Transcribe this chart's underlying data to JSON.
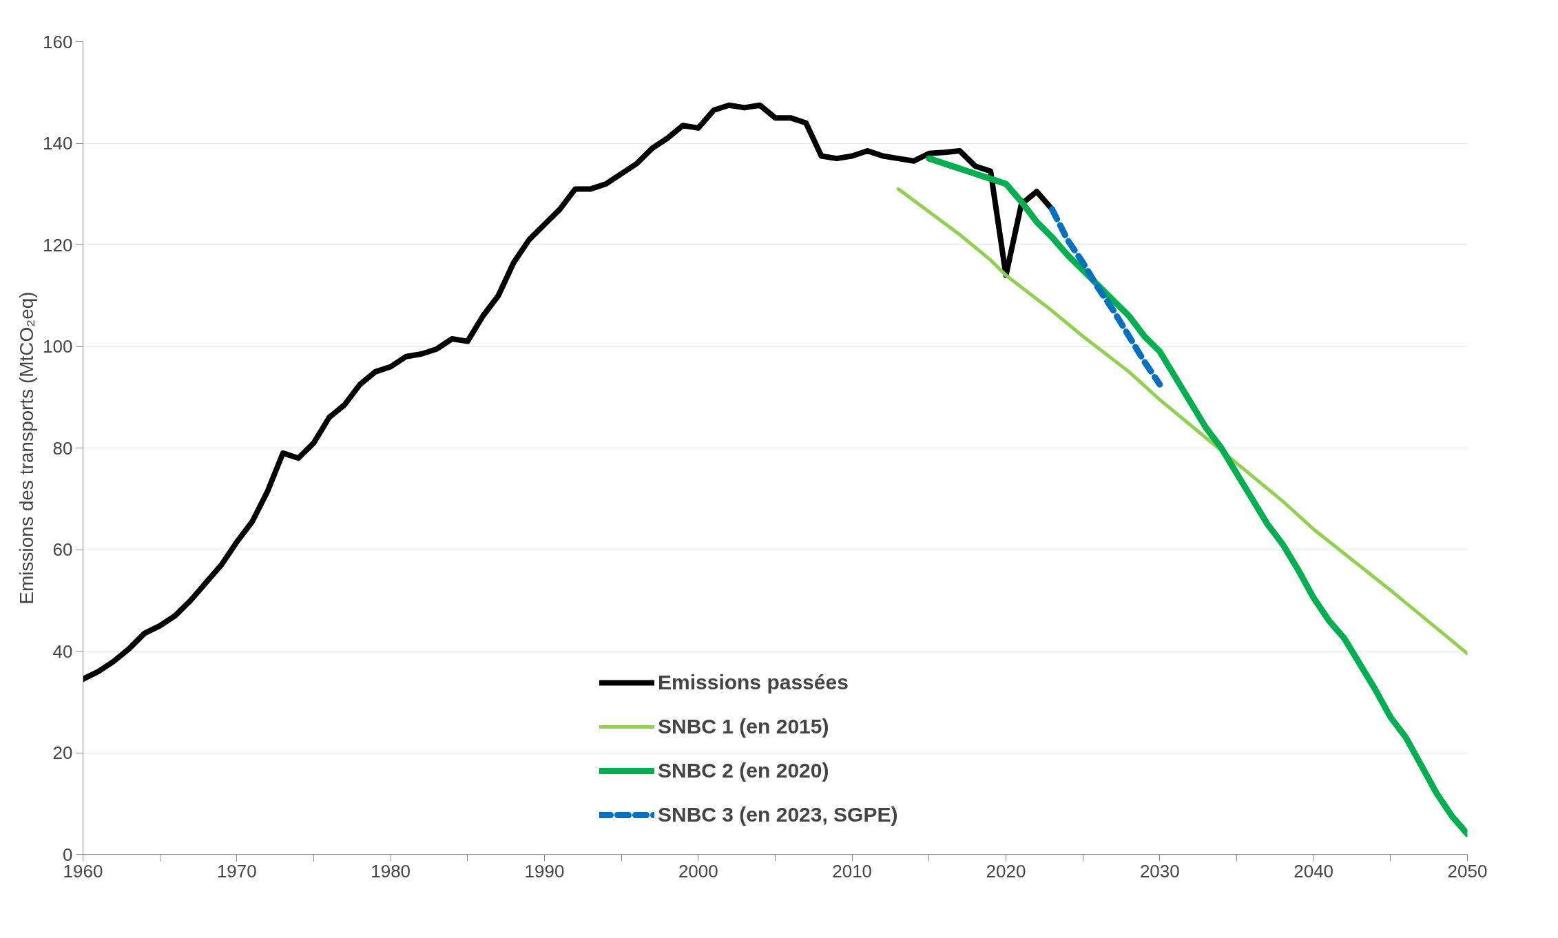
{
  "chart_data": {
    "type": "line",
    "ylabel": "Emissions des transports (MtCO₂eq)",
    "xlim": [
      1960,
      2050
    ],
    "ylim": [
      0,
      160
    ],
    "xticks": [
      1960,
      {
        "value": 1965,
        "label": null
      },
      1970,
      {
        "value": 1975,
        "label": null
      },
      1980,
      {
        "value": 1985,
        "label": null
      },
      1990,
      {
        "value": 1995,
        "label": null
      },
      2000,
      {
        "value": 2005,
        "label": null
      },
      2010,
      {
        "value": 2015,
        "label": null
      },
      2020,
      {
        "value": 2025,
        "label": null
      },
      2030,
      {
        "value": 2035,
        "label": null
      },
      2040,
      {
        "value": 2045,
        "label": null
      },
      2050
    ],
    "yticks": [
      0,
      20,
      40,
      60,
      80,
      100,
      120,
      140,
      160
    ],
    "grid": "y",
    "legend": "bottom",
    "marker": "none",
    "series": [
      {
        "name": "Emissions passées",
        "color": "#000000",
        "x": [
          1960,
          1961,
          1962,
          1963,
          1964,
          1965,
          1966,
          1967,
          1968,
          1969,
          1970,
          1971,
          1972,
          1973,
          1974,
          1975,
          1976,
          1977,
          1978,
          1979,
          1980,
          1981,
          1982,
          1983,
          1984,
          1985,
          1986,
          1987,
          1988,
          1989,
          1990,
          1991,
          1992,
          1993,
          1994,
          1995,
          1996,
          1997,
          1998,
          1999,
          2000,
          2001,
          2002,
          2003,
          2004,
          2005,
          2006,
          2007,
          2008,
          2009,
          2010,
          2011,
          2012,
          2013,
          2014,
          2015,
          2016,
          2017,
          2018,
          2019,
          2020,
          2021,
          2022,
          2023
        ],
        "values": [
          34.5,
          36,
          38,
          40.5,
          43.5,
          45,
          47,
          50,
          53.5,
          57,
          61.5,
          65.5,
          71.5,
          79,
          78,
          81,
          86,
          88.5,
          92.5,
          95,
          96,
          98,
          98.5,
          99.5,
          101.5,
          101,
          106,
          110,
          116.5,
          121,
          124,
          127,
          131,
          131,
          132,
          134,
          136,
          139,
          141,
          143.5,
          143,
          146.5,
          147.5,
          147,
          147.5,
          145,
          145,
          144,
          137.5,
          137,
          137.5,
          138.5,
          137.5,
          137,
          136.5,
          138,
          138.2,
          138.5,
          135.5,
          134.5,
          114,
          128,
          130.5,
          127
        ]
      },
      {
        "name": "SNBC 1 (en 2015)",
        "color": "#92d050",
        "x": [
          2013,
          2015,
          2017,
          2019,
          2020,
          2023,
          2025,
          2028,
          2030,
          2033,
          2035,
          2038,
          2040,
          2045,
          2050
        ],
        "values": [
          131,
          126.5,
          122,
          117,
          114,
          107,
          102,
          95,
          89.5,
          82,
          77,
          69.5,
          64,
          52,
          39.5
        ]
      },
      {
        "name": "SNBC 2 (en 2020)",
        "color": "#00b050",
        "x": [
          2015,
          2017,
          2018,
          2019,
          2020,
          2021,
          2022,
          2023,
          2024,
          2025,
          2026,
          2027,
          2028,
          2029,
          2030,
          2031,
          2032,
          2033,
          2034,
          2035,
          2036,
          2037,
          2038,
          2039,
          2040,
          2041,
          2042,
          2043,
          2044,
          2045,
          2046,
          2047,
          2048,
          2049,
          2050
        ],
        "values": [
          137,
          135,
          134,
          133,
          132,
          128.5,
          124.5,
          121.5,
          118,
          115,
          112,
          109,
          106,
          102,
          99,
          94,
          89,
          84,
          80,
          75,
          70,
          65,
          61,
          56,
          50.5,
          46,
          42.5,
          37.5,
          32.5,
          27,
          23,
          17.5,
          12,
          7.5,
          4
        ]
      },
      {
        "name": "SNBC 3 (en 2023, SGPE)",
        "color": "#0070c0",
        "line_style": "dashed",
        "x": [
          2023,
          2024,
          2025,
          2026,
          2027,
          2028,
          2029,
          2030
        ],
        "values": [
          127,
          121,
          116.5,
          111.5,
          107,
          102,
          97,
          92.5
        ]
      }
    ]
  }
}
